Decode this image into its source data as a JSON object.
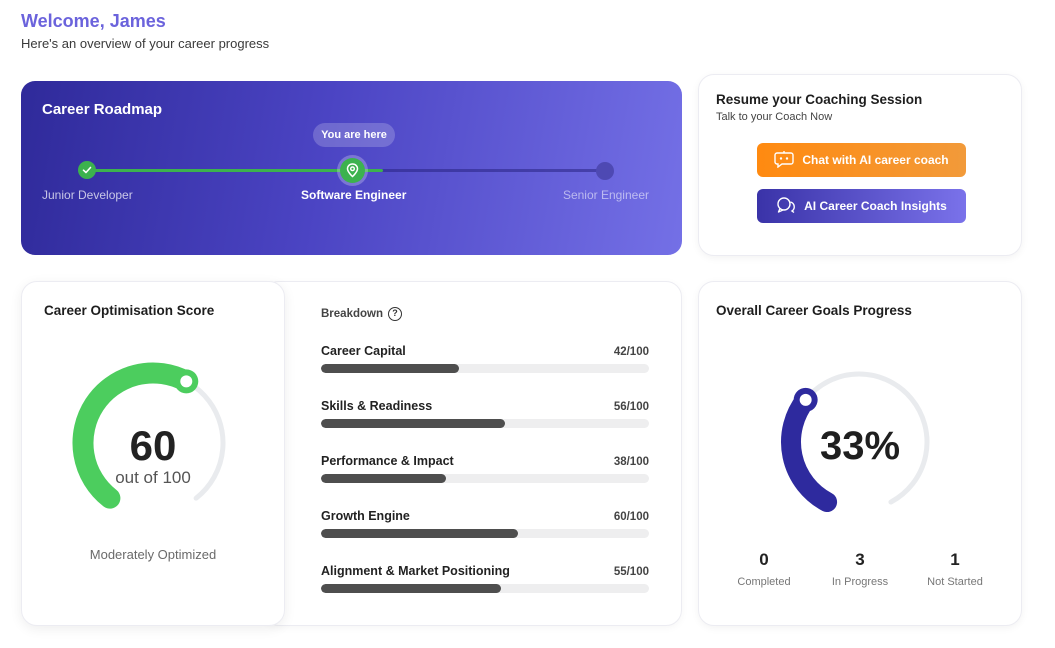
{
  "header": {
    "welcome": "Welcome, James",
    "subtitle": "Here's an overview of your career progress"
  },
  "roadmap": {
    "title": "Career Roadmap",
    "current_tag": "You are here",
    "stages": [
      "Junior Developer",
      "Software Engineer",
      "Senior Engineer"
    ],
    "current_index": 1,
    "colors": {
      "done": "#3cb24e",
      "pending": "#4e49b3"
    }
  },
  "coaching": {
    "title": "Resume your Coaching Session",
    "subtitle": "Talk to your Coach Now",
    "chat_button": "Chat with AI career coach",
    "insights_button": "AI Career Coach Insights",
    "chat_icon": "robot-chat-icon",
    "insights_icon": "chat-bubbles-icon"
  },
  "score": {
    "title": "Career Optimisation Score",
    "value": "60",
    "out_of": "out of 100",
    "status": "Moderately Optimized",
    "fraction": 0.6,
    "color": "#4ccd5e"
  },
  "breakdown": {
    "title": "Breakdown",
    "items": [
      {
        "label": "Career Capital",
        "value": "42/100",
        "pct": 42
      },
      {
        "label": "Skills & Readiness",
        "value": "56/100",
        "pct": 56
      },
      {
        "label": "Performance & Impact",
        "value": "38/100",
        "pct": 38
      },
      {
        "label": "Growth Engine",
        "value": "60/100",
        "pct": 60
      },
      {
        "label": "Alignment & Market Positioning",
        "value": "55/100",
        "pct": 55
      }
    ]
  },
  "goals": {
    "title": "Overall Career Goals Progress",
    "percent": "33%",
    "fraction": 0.33,
    "color": "#2e2a9e",
    "stats": [
      {
        "value": "0",
        "label": "Completed"
      },
      {
        "value": "3",
        "label": "In Progress"
      },
      {
        "value": "1",
        "label": "Not Started"
      }
    ]
  }
}
